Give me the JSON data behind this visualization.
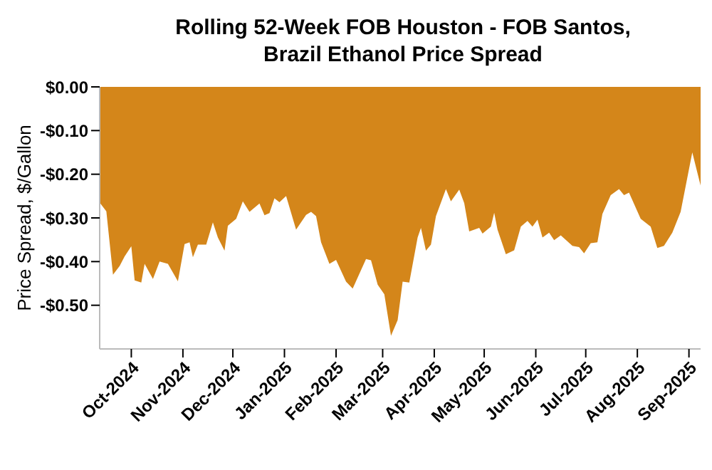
{
  "chart_data": {
    "type": "area",
    "title": "Rolling 52-Week FOB Houston - FOB Santos, Brazil Ethanol Price Spread",
    "ylabel": "Price Spread, $/Gallon",
    "color": "#d4861a",
    "x": [
      "2024-09-12",
      "2024-09-16",
      "2024-09-20",
      "2024-09-24",
      "2024-09-27",
      "2024-10-01",
      "2024-10-03",
      "2024-10-07",
      "2024-10-09",
      "2024-10-14",
      "2024-10-18",
      "2024-10-23",
      "2024-10-29",
      "2024-11-02",
      "2024-11-05",
      "2024-11-07",
      "2024-11-10",
      "2024-11-15",
      "2024-11-19",
      "2024-11-22",
      "2024-11-26",
      "2024-11-28",
      "2024-12-03",
      "2024-12-07",
      "2024-12-11",
      "2024-12-17",
      "2024-12-20",
      "2024-12-23",
      "2024-12-26",
      "2024-12-29",
      "2025-01-02",
      "2025-01-08",
      "2025-01-14",
      "2025-01-17",
      "2025-01-20",
      "2025-01-23",
      "2025-01-28",
      "2025-02-01",
      "2025-02-07",
      "2025-02-11",
      "2025-02-19",
      "2025-02-22",
      "2025-02-26",
      "2025-03-02",
      "2025-03-06",
      "2025-03-10",
      "2025-03-13",
      "2025-03-17",
      "2025-03-22",
      "2025-03-24",
      "2025-03-27",
      "2025-03-30",
      "2025-04-02",
      "2025-04-08",
      "2025-04-11",
      "2025-04-16",
      "2025-04-19",
      "2025-04-22",
      "2025-04-28",
      "2025-04-30",
      "2025-05-05",
      "2025-05-07",
      "2025-05-09",
      "2025-05-14",
      "2025-05-19",
      "2025-05-23",
      "2025-05-27",
      "2025-05-30",
      "2025-06-02",
      "2025-06-05",
      "2025-06-09",
      "2025-06-12",
      "2025-06-16",
      "2025-06-23",
      "2025-06-27",
      "2025-06-30",
      "2025-07-04",
      "2025-07-08",
      "2025-07-11",
      "2025-07-16",
      "2025-07-21",
      "2025-07-24",
      "2025-07-27",
      "2025-08-03",
      "2025-08-09",
      "2025-08-13",
      "2025-08-17",
      "2025-08-22",
      "2025-08-27",
      "2025-09-03",
      "2025-09-08"
    ],
    "values": [
      -0.265,
      -0.285,
      -0.43,
      -0.41,
      -0.388,
      -0.365,
      -0.443,
      -0.448,
      -0.405,
      -0.44,
      -0.4,
      -0.405,
      -0.445,
      -0.36,
      -0.356,
      -0.39,
      -0.361,
      -0.361,
      -0.31,
      -0.345,
      -0.375,
      -0.318,
      -0.302,
      -0.262,
      -0.286,
      -0.267,
      -0.294,
      -0.289,
      -0.255,
      -0.264,
      -0.25,
      -0.327,
      -0.293,
      -0.286,
      -0.296,
      -0.356,
      -0.405,
      -0.396,
      -0.446,
      -0.462,
      -0.394,
      -0.397,
      -0.453,
      -0.475,
      -0.57,
      -0.534,
      -0.446,
      -0.448,
      -0.345,
      -0.323,
      -0.375,
      -0.361,
      -0.296,
      -0.234,
      -0.262,
      -0.235,
      -0.266,
      -0.331,
      -0.323,
      -0.336,
      -0.32,
      -0.288,
      -0.327,
      -0.383,
      -0.374,
      -0.32,
      -0.307,
      -0.32,
      -0.304,
      -0.345,
      -0.334,
      -0.351,
      -0.34,
      -0.364,
      -0.367,
      -0.381,
      -0.358,
      -0.356,
      -0.291,
      -0.248,
      -0.234,
      -0.248,
      -0.242,
      -0.302,
      -0.32,
      -0.369,
      -0.364,
      -0.334,
      -0.286,
      -0.15,
      -0.226
    ],
    "xlim": [
      "2024-09-12",
      "2025-09-08"
    ],
    "xticks": [
      {
        "value": "2024-10-01",
        "label": "Oct-2024"
      },
      {
        "value": "2024-11-01",
        "label": "Nov-2024"
      },
      {
        "value": "2024-12-01",
        "label": "Dec-2024"
      },
      {
        "value": "2025-01-01",
        "label": "Jan-2025"
      },
      {
        "value": "2025-02-01",
        "label": "Feb-2025"
      },
      {
        "value": "2025-03-01",
        "label": "Mar-2025"
      },
      {
        "value": "2025-04-01",
        "label": "Apr-2025"
      },
      {
        "value": "2025-05-01",
        "label": "May-2025"
      },
      {
        "value": "2025-06-01",
        "label": "Jun-2025"
      },
      {
        "value": "2025-07-01",
        "label": "Jul-2025"
      },
      {
        "value": "2025-08-01",
        "label": "Aug-2025"
      },
      {
        "value": "2025-09-01",
        "label": "Sep-2025"
      }
    ],
    "ylim": [
      -0.6,
      0
    ],
    "yticks": [
      {
        "value": 0,
        "label": "$0.00"
      },
      {
        "value": -0.1,
        "label": "-$0.10"
      },
      {
        "value": -0.2,
        "label": "-$0.20"
      },
      {
        "value": -0.3,
        "label": "-$0.30"
      },
      {
        "value": -0.4,
        "label": "-$0.40"
      },
      {
        "value": -0.5,
        "label": "-$0.50"
      }
    ],
    "grid": false,
    "legend": false
  }
}
